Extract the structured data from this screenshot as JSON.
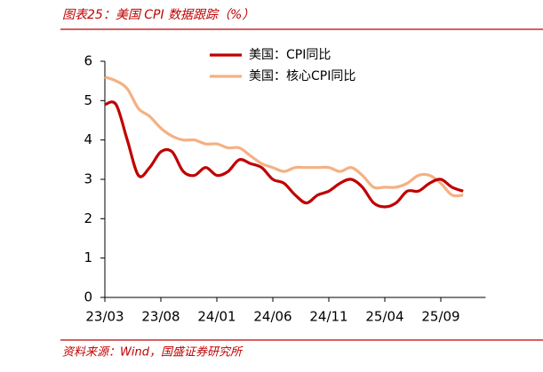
{
  "title": "图表25：美国 CPI 数据跟踪（%）",
  "source": "资料来源：Wind，国盛证券研究所",
  "chart_data": {
    "type": "line",
    "categories": [
      "23/03",
      null,
      null,
      null,
      null,
      "23/08",
      null,
      null,
      null,
      null,
      "24/01",
      null,
      null,
      null,
      null,
      "24/06",
      null,
      null,
      null,
      null,
      "24/11",
      null,
      null,
      null,
      null,
      "25/04",
      null,
      null,
      null,
      null,
      "25/09",
      null,
      null
    ],
    "series": [
      {
        "name": "美国：CPI同比",
        "color": "#c00000",
        "values": [
          4.9,
          4.9,
          4.0,
          3.1,
          3.3,
          3.7,
          3.7,
          3.2,
          3.1,
          3.3,
          3.1,
          3.2,
          3.5,
          3.4,
          3.3,
          3.0,
          2.9,
          2.6,
          2.4,
          2.6,
          2.7,
          2.9,
          3.0,
          2.8,
          2.4,
          2.3,
          2.4,
          2.7,
          2.7,
          2.9,
          3.0,
          2.8,
          2.7
        ]
      },
      {
        "name": "美国：核心CPI同比",
        "color": "#f4b183",
        "values": [
          5.6,
          5.5,
          5.3,
          4.8,
          4.6,
          4.3,
          4.1,
          4.0,
          4.0,
          3.9,
          3.9,
          3.8,
          3.8,
          3.6,
          3.4,
          3.3,
          3.2,
          3.3,
          3.3,
          3.3,
          3.3,
          3.2,
          3.3,
          3.1,
          2.8,
          2.8,
          2.8,
          2.9,
          3.1,
          3.1,
          2.9,
          2.6,
          2.6
        ]
      }
    ],
    "ylim": [
      0,
      6
    ],
    "yticks": [
      0,
      1,
      2,
      3,
      4,
      5,
      6
    ],
    "grid": false,
    "legend": "top"
  }
}
